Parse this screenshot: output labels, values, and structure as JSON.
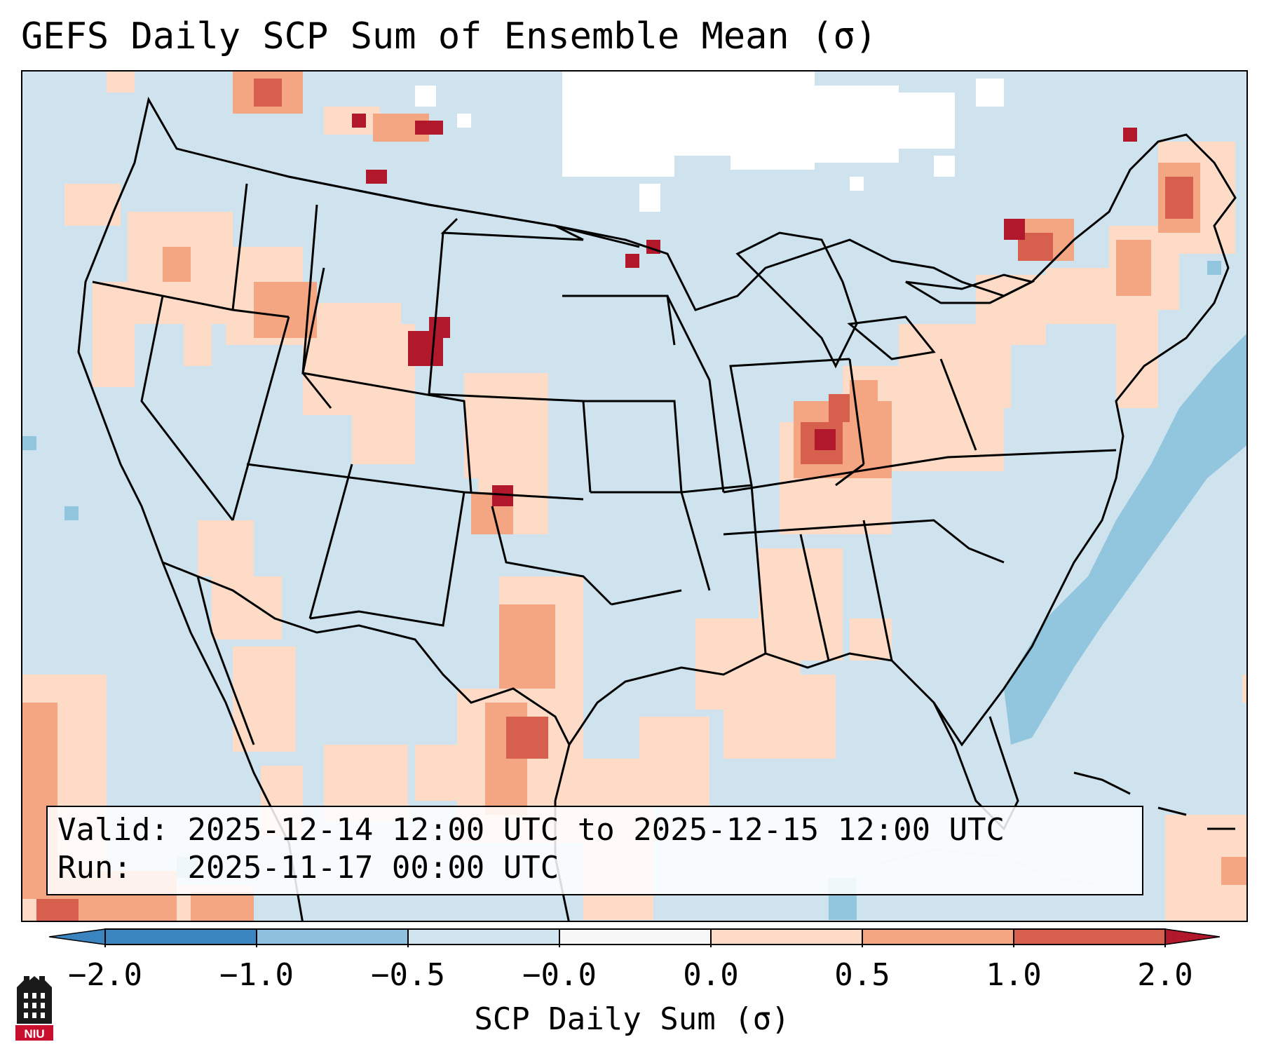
{
  "title": "GEFS Daily SCP Sum of Ensemble Mean (σ)",
  "info": {
    "valid_label": "Valid:",
    "valid_value": "2025-12-14 12:00 UTC to 2025-12-15 12:00 UTC",
    "run_label": "Run:",
    "run_value": "2025-11-17 00:00 UTC"
  },
  "colorbar": {
    "label": "SCP Daily Sum (σ)",
    "ticks": [
      "−2.0",
      "−1.0",
      "−0.5",
      "−0.0",
      "0.0",
      "0.5",
      "1.0",
      "2.0"
    ],
    "colors": [
      "#3a84c0",
      "#8fc1de",
      "#d1e5f0",
      "#f7f7f7",
      "#fddbc7",
      "#f4a582",
      "#d6604d",
      "#b2182b"
    ]
  },
  "map": {
    "region": "Continental United States",
    "background_color": "#cfe3ef",
    "land_border_color": "#000000"
  },
  "logo": {
    "text": "NIU"
  }
}
